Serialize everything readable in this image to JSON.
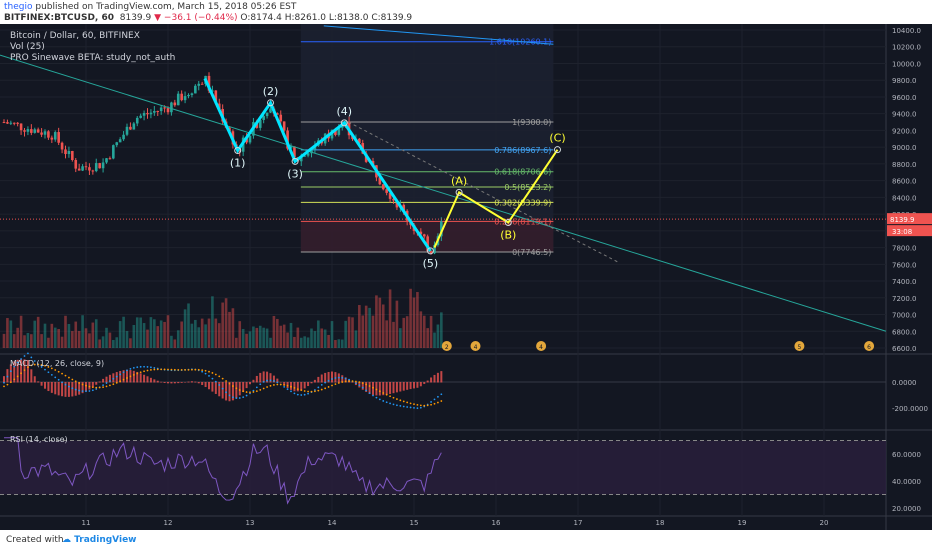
{
  "header": {
    "author": "thegio",
    "published": "published on TradingView.com, March 15, 2018 05:26 EST",
    "symbol": "BITFINEX:BTCUSD, 60",
    "last": "8139.9",
    "change": "−36.1 (−0.44%)",
    "open": "O:8174.4",
    "high": "H:8261.0",
    "low": "L:8138.0",
    "close": "C:8139.9"
  },
  "legend": {
    "title": "Bitcoin / Dollar, 60, BITFINEX",
    "vol": "Vol (25)",
    "study": "PRO Sinewave BETA: study_not_auth"
  },
  "footer": {
    "created": "Created with",
    "brand": "TradingView"
  },
  "colors": {
    "background": "#131722",
    "up": "#26a69a",
    "down": "#ef5350",
    "wave": "#00e5ff",
    "abc": "#ffff33",
    "rsi": "#7e57c2"
  },
  "chart_data": {
    "type": "line",
    "price_axis": [
      "10400.0",
      "10200.0",
      "10000.0",
      "9800.0",
      "9600.0",
      "9400.0",
      "9200.0",
      "9000.0",
      "8800.0",
      "8600.0",
      "8400.0",
      "8200.0",
      "8000.0",
      "7800.0",
      "7600.0",
      "7400.0",
      "7200.0",
      "7000.0",
      "6800.0",
      "6600.0"
    ],
    "x_axis": [
      "11",
      "12",
      "13",
      "14",
      "15",
      "16",
      "17",
      "18",
      "19",
      "20"
    ],
    "last_price_tag": "8139.9",
    "countdown_tag": "33:08",
    "fib_levels": [
      {
        "label": "1.618(10260.1)",
        "value": 10260.1,
        "color": "#2962ff"
      },
      {
        "label": "1(9300.0)",
        "value": 9300.0,
        "color": "#9e9e9e"
      },
      {
        "label": "0.786(8967.6)",
        "value": 8967.6,
        "color": "#42a5f5"
      },
      {
        "label": "0.618(8706.6)",
        "value": 8706.6,
        "color": "#66bb6a"
      },
      {
        "label": "0.5(8523.2)",
        "value": 8523.2,
        "color": "#9ccc65"
      },
      {
        "label": "0.382(8339.9)",
        "value": 8339.9,
        "color": "#d4e157"
      },
      {
        "label": "0.236(8113.1)",
        "value": 8113.1,
        "color": "#ef5350"
      },
      {
        "label": "0(7746.5)",
        "value": 7746.5,
        "color": "#9e9e9e"
      }
    ],
    "elliott_wave": [
      {
        "day": 12.45,
        "price": 9820,
        "label": ""
      },
      {
        "day": 12.85,
        "price": 8960,
        "label": "(1)"
      },
      {
        "day": 13.25,
        "price": 9530,
        "label": "(2)"
      },
      {
        "day": 13.55,
        "price": 8830,
        "label": "(3)"
      },
      {
        "day": 14.15,
        "price": 9290,
        "label": "(4)"
      },
      {
        "day": 15.2,
        "price": 7760,
        "label": "(5)"
      }
    ],
    "abc_projection": [
      {
        "day": 15.25,
        "price": 7800,
        "label": ""
      },
      {
        "day": 15.55,
        "price": 8460,
        "label": "(A)"
      },
      {
        "day": 16.15,
        "price": 8100,
        "label": "(B)"
      },
      {
        "day": 16.75,
        "price": 8970,
        "label": "(C)"
      }
    ],
    "macd": {
      "label": "MACD (12, 26, close, 9)",
      "axis": [
        "0.0000",
        "-200.0000"
      ]
    },
    "rsi": {
      "label": "RSI (14, close)",
      "axis": [
        "60.0000",
        "40.0000",
        "20.0000"
      ]
    },
    "events": [
      "2",
      "4",
      "4",
      "5",
      "6"
    ]
  }
}
